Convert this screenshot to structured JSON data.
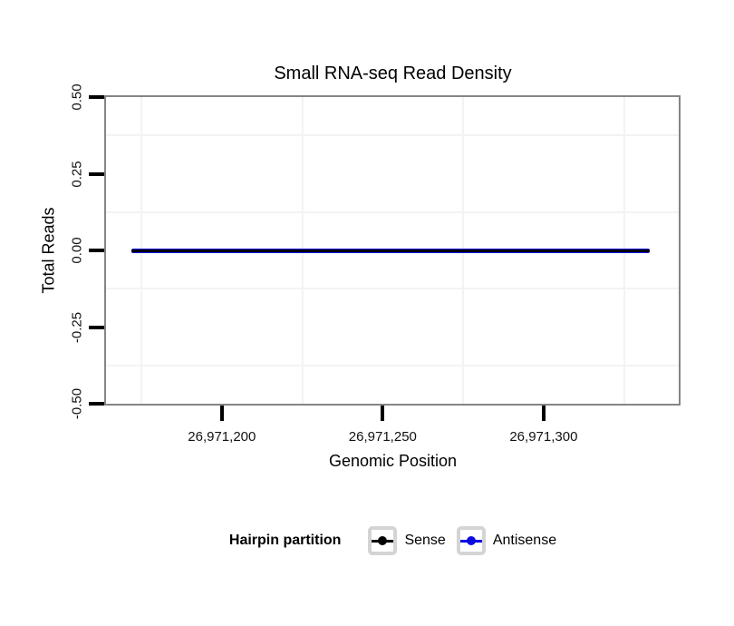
{
  "chart_data": {
    "type": "line",
    "title": "Small RNA-seq Read Density",
    "xlabel": "Genomic Position",
    "ylabel": "Total Reads",
    "xlim": [
      26971164,
      26971342
    ],
    "ylim": [
      -0.5,
      0.5
    ],
    "x_ticks": [
      {
        "value": 26971200,
        "label": "26,971,200"
      },
      {
        "value": 26971250,
        "label": "26,971,250"
      },
      {
        "value": 26971300,
        "label": "26,971,300"
      }
    ],
    "y_ticks": [
      {
        "value": 0.5,
        "label": "0.50"
      },
      {
        "value": 0.25,
        "label": "0.25"
      },
      {
        "value": 0,
        "label": "0.00"
      },
      {
        "value": -0.25,
        "label": "-0.25"
      },
      {
        "value": -0.5,
        "label": "-0.50"
      }
    ],
    "grid": "minor-gridlines-only",
    "series": [
      {
        "name": "Antisense",
        "color": "#0b0be0",
        "x": [
          26971172,
          26971333
        ],
        "y": [
          0,
          0
        ],
        "linewidth": 5
      },
      {
        "name": "Sense",
        "color": "#000000",
        "x": [
          26971172,
          26971333
        ],
        "y": [
          0,
          0
        ],
        "linewidth": 3
      }
    ],
    "legend": {
      "title": "Hairpin partition",
      "position": "bottom",
      "entries": [
        {
          "label": "Sense",
          "color": "#000000"
        },
        {
          "label": "Antisense",
          "color": "#0b0be0"
        }
      ]
    }
  },
  "colors": {
    "panel_border": "#858585",
    "grid_minor": "#f3f3f3",
    "tick": "#000000",
    "background": "#ffffff"
  }
}
